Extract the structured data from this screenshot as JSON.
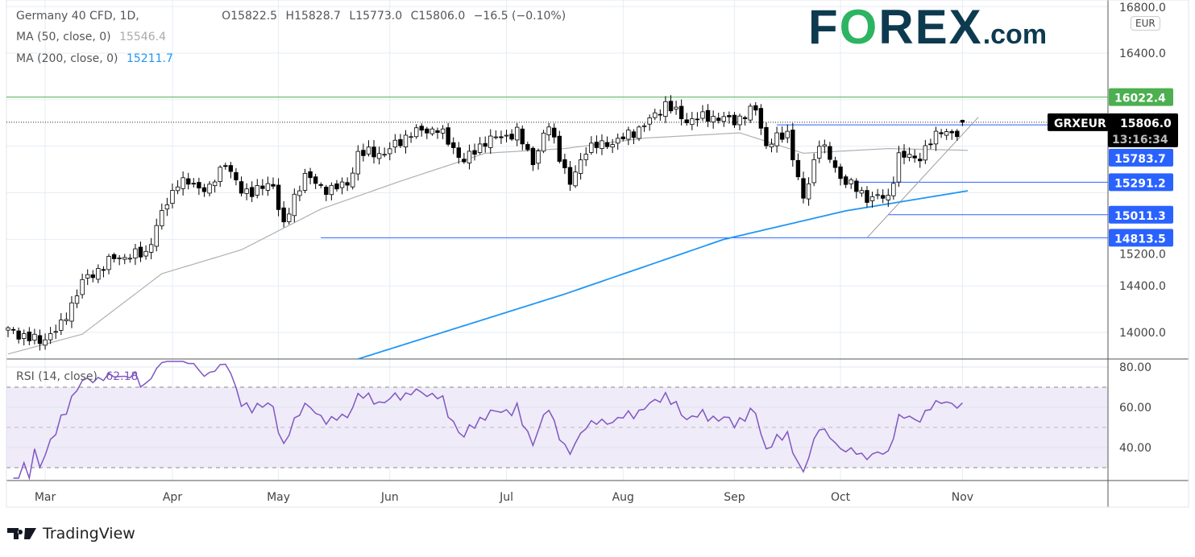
{
  "header": {
    "symbol": "Germany 40 CFD, 1D,",
    "open": "O15822.5",
    "high": "H15828.7",
    "low": "L15773.0",
    "close": "C15806.0",
    "change": "−16.5 (−0.10%)",
    "ma50_label": "MA (50, close, 0)",
    "ma50_value": "15546.4",
    "ma200_label": "MA (200, close, 0)",
    "ma200_value": "15211.7"
  },
  "logo": {
    "brand": "FOREX",
    "brand_o": "O",
    "domain": ".com"
  },
  "currency": "EUR",
  "footer": {
    "brand": "TradingView"
  },
  "colors": {
    "ma50": "#b0b0b0",
    "ma200": "#2196f3",
    "rsi": "#7e57c2",
    "resistance": "#4caf50",
    "support": "#2962ff",
    "rsi_band": "#f0ebf8"
  },
  "chart_data": {
    "type": "candlestick",
    "title": "Germany 40 CFD, 1D",
    "price_axis": {
      "ticks": [
        "16800.0",
        "16400.0",
        "15200.0",
        "14400.0",
        "14000.0"
      ],
      "ylim": [
        13770,
        16870
      ]
    },
    "time_axis": {
      "labels": [
        [
          "Mar",
          7
        ],
        [
          "Apr",
          31
        ],
        [
          "May",
          51
        ],
        [
          "Jun",
          72
        ],
        [
          "Jul",
          94
        ],
        [
          "Aug",
          116
        ],
        [
          "Sep",
          137
        ],
        [
          "Oct",
          157
        ],
        [
          "Nov",
          180
        ]
      ]
    },
    "approx_close_waypoints_day_price": [
      [
        0,
        14020
      ],
      [
        6,
        13920
      ],
      [
        10,
        14055
      ],
      [
        14,
        14435
      ],
      [
        20,
        14640
      ],
      [
        26,
        14680
      ],
      [
        29,
        15020
      ],
      [
        32,
        15300
      ],
      [
        38,
        15230
      ],
      [
        41,
        15470
      ],
      [
        44,
        15200
      ],
      [
        50,
        15265
      ],
      [
        52,
        14920
      ],
      [
        56,
        15370
      ],
      [
        59,
        15230
      ],
      [
        64,
        15265
      ],
      [
        66,
        15540
      ],
      [
        71,
        15540
      ],
      [
        76,
        15715
      ],
      [
        81,
        15750
      ],
      [
        86,
        15470
      ],
      [
        90,
        15645
      ],
      [
        96,
        15715
      ],
      [
        99,
        15470
      ],
      [
        102,
        15780
      ],
      [
        106,
        15265
      ],
      [
        109,
        15580
      ],
      [
        115,
        15645
      ],
      [
        120,
        15780
      ],
      [
        124,
        15960
      ],
      [
        128,
        15820
      ],
      [
        132,
        15855
      ],
      [
        137,
        15820
      ],
      [
        141,
        15920
      ],
      [
        143,
        15610
      ],
      [
        147,
        15715
      ],
      [
        150,
        15125
      ],
      [
        153,
        15645
      ],
      [
        157,
        15335
      ],
      [
        162,
        15160
      ],
      [
        166,
        15160
      ],
      [
        168,
        15510
      ],
      [
        172,
        15510
      ],
      [
        176,
        15750
      ],
      [
        179,
        15680
      ],
      [
        180,
        15806
      ]
    ],
    "ma50_waypoints": [
      [
        0,
        13815
      ],
      [
        14,
        13985
      ],
      [
        29,
        14505
      ],
      [
        44,
        14710
      ],
      [
        59,
        15060
      ],
      [
        74,
        15300
      ],
      [
        90,
        15540
      ],
      [
        105,
        15580
      ],
      [
        120,
        15670
      ],
      [
        138,
        15715
      ],
      [
        150,
        15540
      ],
      [
        166,
        15580
      ],
      [
        181,
        15565
      ]
    ],
    "ma200_waypoints": [
      [
        66,
        13772
      ],
      [
        105,
        14330
      ],
      [
        135,
        14800
      ],
      [
        158,
        15045
      ],
      [
        181,
        15217
      ]
    ],
    "levels": [
      {
        "label": "16022.4",
        "price": 16022.4,
        "type": "resistance",
        "start_day": 0
      },
      {
        "label": "15783.7",
        "price": 15783.7,
        "type": "support",
        "start_day": 145
      },
      {
        "label": "15291.2",
        "price": 15291.2,
        "type": "support",
        "start_day": 160
      },
      {
        "label": "15011.3",
        "price": 15011.3,
        "type": "support",
        "start_day": 166
      },
      {
        "label": "14813.5",
        "price": 14813.5,
        "type": "support",
        "start_day": 59
      }
    ],
    "last_price": {
      "symbol": "GRXEUR",
      "price": "15806.0",
      "countdown": "13:16:34",
      "value": 15806.0
    },
    "trendline": [
      [
        162,
        14813.5
      ],
      [
        183,
        15850
      ]
    ],
    "rsi": {
      "label": "RSI (14, close)",
      "value": "62.18",
      "ticks": [
        "80.00",
        "60.00",
        "40.00"
      ],
      "upper": 70,
      "lower": 30,
      "ylim": [
        24,
        84
      ]
    }
  }
}
